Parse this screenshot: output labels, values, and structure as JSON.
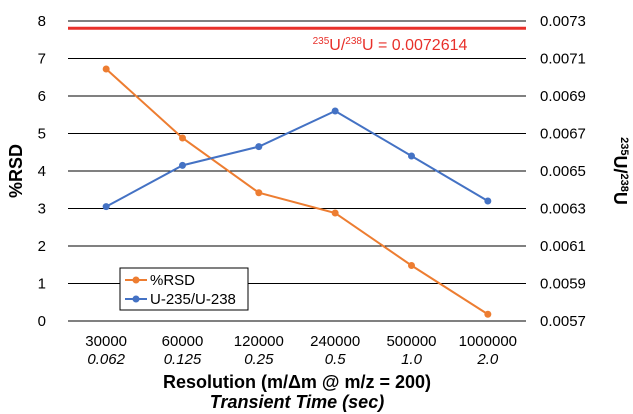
{
  "chart_data": {
    "type": "line",
    "categories": [
      "30000",
      "60000",
      "120000",
      "240000",
      "500000",
      "1000000"
    ],
    "categories_secondary": [
      "0.062",
      "0.125",
      "0.25",
      "0.5",
      "1.0",
      "2.0"
    ],
    "series": [
      {
        "name": "%RSD",
        "axis": "left",
        "color": "#ED7D31",
        "values": [
          6.72,
          4.88,
          3.42,
          2.88,
          1.48,
          0.18
        ]
      },
      {
        "name": "U-235/U-238",
        "axis": "right",
        "color": "#4472C4",
        "values": [
          0.00631,
          0.00653,
          0.00663,
          0.00682,
          0.00658,
          0.00634
        ]
      }
    ],
    "reference_line": {
      "axis": "right",
      "value": 0.0072614,
      "color": "#E8302A",
      "label_num_sup": "235",
      "label_num": "U/",
      "label_den_sup": "238",
      "label_den": "U = 0.0072614"
    },
    "xlabel": "Resolution (m/Δm @ m/z = 200)",
    "xlabel2": "Transient Time (sec)",
    "ylabel": "%RSD",
    "y2label_sup1": "235",
    "y2label_mid": "U/",
    "y2label_sup2": "238",
    "y2label_end": "U",
    "ylim": [
      0,
      8
    ],
    "yticks": [
      0,
      1,
      2,
      3,
      4,
      5,
      6,
      7,
      8
    ],
    "y2lim": [
      0.0057,
      0.0073
    ],
    "y2ticks": [
      "0.0057",
      "0.0059",
      "0.0061",
      "0.0063",
      "0.0065",
      "0.0067",
      "0.0069",
      "0.0071",
      "0.0073"
    ],
    "grid": "horizontal",
    "legend_position": "bottom-left"
  }
}
